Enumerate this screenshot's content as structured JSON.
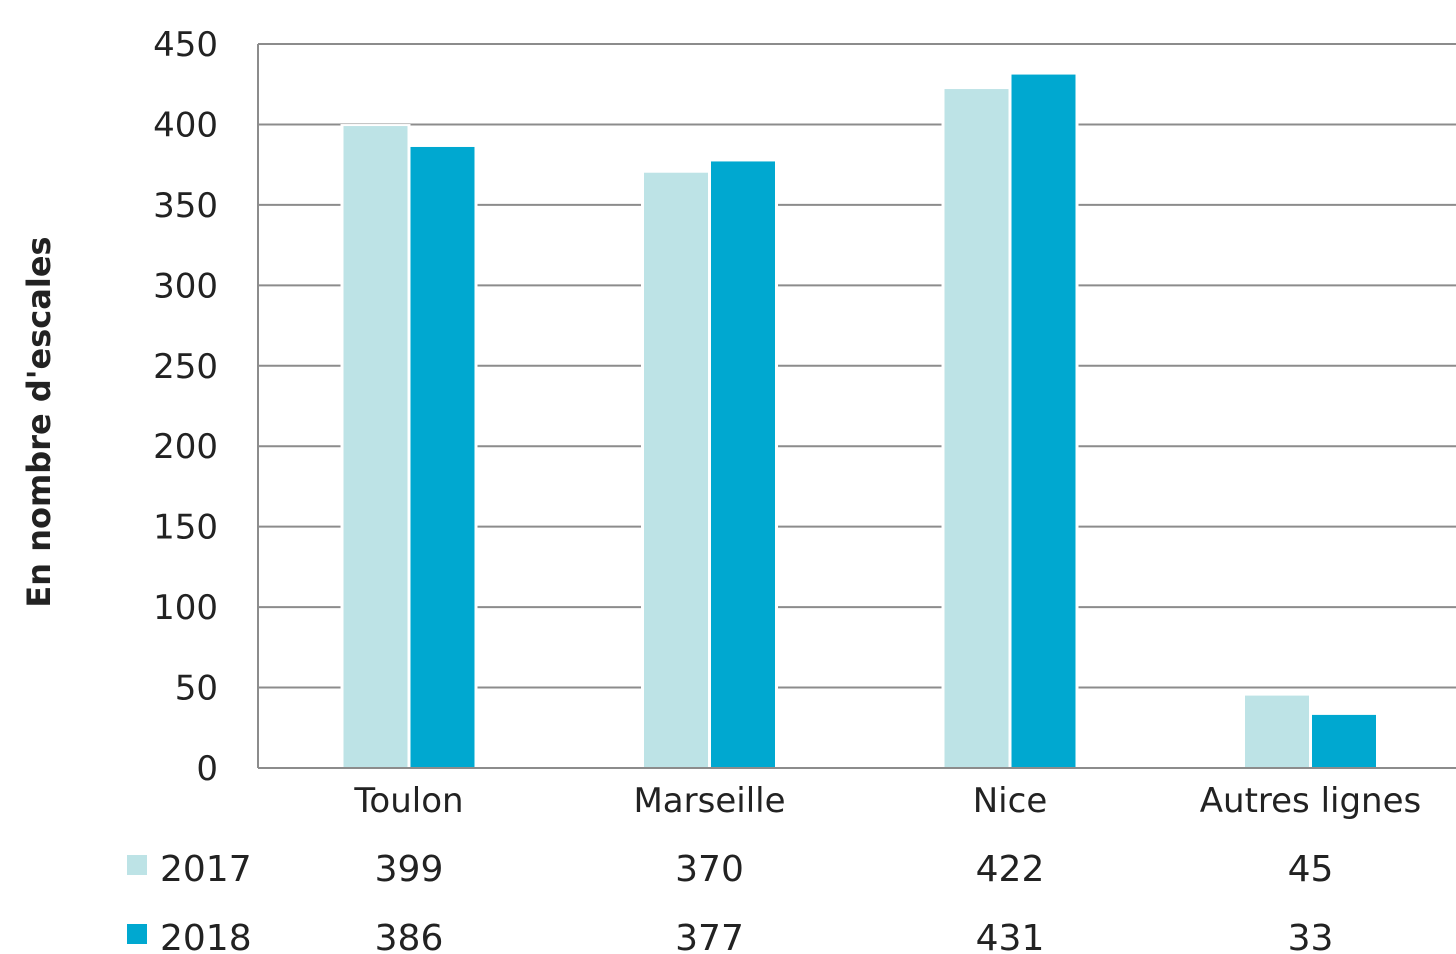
{
  "chart_data": {
    "type": "bar",
    "title": "",
    "xlabel": "",
    "ylabel": "En nombre d'escales",
    "ylim": [
      0,
      450
    ],
    "yticks": [
      0,
      50,
      100,
      150,
      200,
      250,
      300,
      350,
      400,
      450
    ],
    "grid": true,
    "legend": "data-table-below",
    "categories": [
      "Toulon",
      "Marseille",
      "Nice",
      "Autres lignes"
    ],
    "series": [
      {
        "name": "2017",
        "values": [
          399,
          370,
          422,
          45
        ],
        "color": "#bde3e6"
      },
      {
        "name": "2018",
        "values": [
          386,
          377,
          431,
          33
        ],
        "color": "#00a8d0"
      }
    ]
  }
}
